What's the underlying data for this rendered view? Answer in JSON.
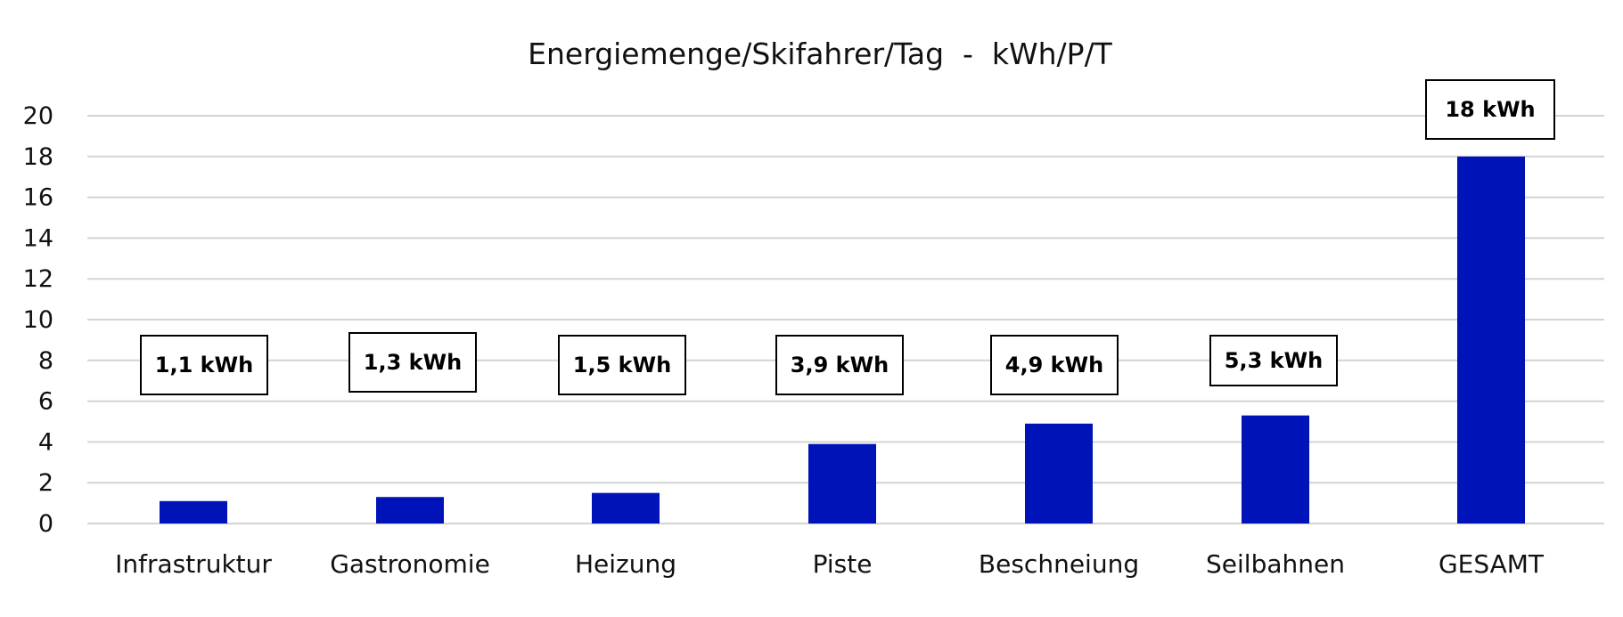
{
  "chart_data": {
    "type": "bar",
    "title": "Energiemenge/Skifahrer/Tag  -  kWh/P/T",
    "xlabel": "",
    "ylabel": "",
    "categories": [
      "Infrastruktur",
      "Gastronomie",
      "Heizung",
      "Piste",
      "Beschneiung",
      "Seilbahnen",
      "GESAMT"
    ],
    "values": [
      1.1,
      1.3,
      1.5,
      3.9,
      4.9,
      5.3,
      18
    ],
    "data_labels": [
      "1,1 kWh",
      "1,3 kWh",
      "1,5 kWh",
      "3,9 kWh",
      "4,9 kWh",
      "5,3 kWh",
      "18 kWh"
    ],
    "yticks": [
      "0",
      "2",
      "4",
      "6",
      "8",
      "10",
      "12",
      "14",
      "16",
      "18",
      "20"
    ],
    "ylim": [
      0,
      20
    ],
    "grid": true,
    "legend": "none",
    "bar_color": "#0013B8"
  }
}
